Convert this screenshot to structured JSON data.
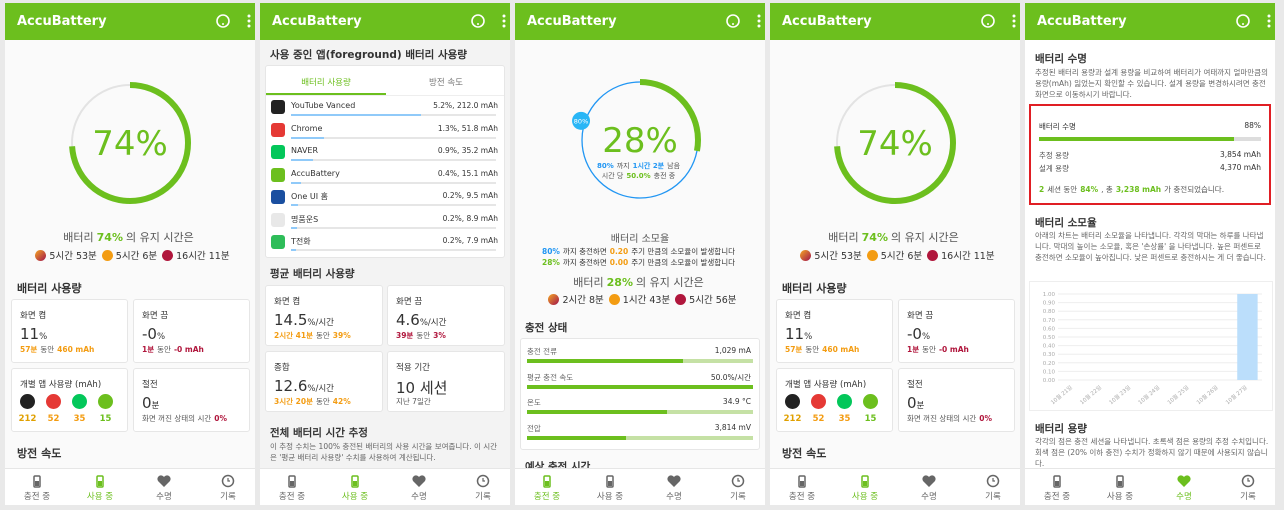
{
  "app_title": "AccuBattery",
  "nav": [
    "충전 중",
    "사용 중",
    "수명",
    "기록"
  ],
  "screens": [
    {
      "nav_active": 1,
      "gauge": {
        "value": 74,
        "label": "74%"
      },
      "retention": [
        "배터리",
        "74%",
        "의 유지 시간은"
      ],
      "times": [
        "5시간 53분",
        "5시간 6분",
        "16시간 11분"
      ],
      "usage_title": "배터리 사용량",
      "screen_on": {
        "label": "화면 켬",
        "value": "11",
        "unit": "%",
        "detail": [
          "57분",
          "동안",
          "460 mAh"
        ]
      },
      "screen_off": {
        "label": "화면 끔",
        "value": "-0",
        "unit": "%",
        "detail": [
          "1분",
          "동안",
          "-0 mAh"
        ]
      },
      "apps": {
        "label": "개별 앱 사용량 (mAh)",
        "values": [
          "212",
          "52",
          "35",
          "15"
        ]
      },
      "doze": {
        "label": "절전",
        "value": "0",
        "unit": "분",
        "detail": [
          "화면 꺼진 상태의 시간",
          "0%"
        ]
      },
      "next_title": "방전 속도"
    },
    {
      "nav_active": 1,
      "title": "사용 중인 앱(foreground) 배터리 사용량",
      "tabs": [
        "배터리 사용량",
        "방전 속도"
      ],
      "apps": [
        {
          "name": "YouTube Vanced",
          "usage": "5.2%, 212.0 mAh"
        },
        {
          "name": "Chrome",
          "usage": "1.3%, 51.8 mAh"
        },
        {
          "name": "NAVER",
          "usage": "0.9%, 35.2 mAh"
        },
        {
          "name": "AccuBattery",
          "usage": "0.4%, 15.1 mAh"
        },
        {
          "name": "One UI 홈",
          "usage": "0.2%, 9.5 mAh"
        },
        {
          "name": "명품운S",
          "usage": "0.2%, 8.9 mAh"
        },
        {
          "name": "T전화",
          "usage": "0.2%, 7.9 mAh"
        }
      ],
      "avg_title": "평균 배터리 사용량",
      "cards": [
        {
          "label": "화면 켬",
          "value": "14.5",
          "unit": "%/시간",
          "detail": [
            "2시간 41분",
            "동안",
            "39%"
          ]
        },
        {
          "label": "화면 끔",
          "value": "4.6",
          "unit": "%/시간",
          "detail": [
            "39분",
            "동안",
            "3%"
          ]
        },
        {
          "label": "종합",
          "value": "12.6",
          "unit": "%/시간",
          "detail": [
            "3시간 20분",
            "동안",
            "42%"
          ]
        },
        {
          "label": "적용 기간",
          "value": "10 세션",
          "detail": [
            "지난 7일간"
          ]
        }
      ],
      "estimate_title": "전체 배터리 시간 추정",
      "estimate_text": "이 추정 수치는 100% 충전된 배터리의 사용 시간을 보여줍니다. 이 시간은 '평균 배터리 사용량' 수치를 사용하여 계산됩니다."
    },
    {
      "nav_active": 0,
      "gauge": {
        "value": 28,
        "label": "28%"
      },
      "target": {
        "value": 80,
        "label": "80%"
      },
      "gauge_lines": [
        [
          "80%",
          "까지",
          "1시간 2분",
          "남음"
        ],
        [
          "시간 당",
          "50.0%",
          "충전 중"
        ]
      ],
      "wear_title": "배터리 소모율",
      "wear_lines": [
        [
          "80%",
          "까지 충전하면",
          "0.20",
          "주기 만큼의 소모율이 발생합니다"
        ],
        [
          "28%",
          "까지 충전하면",
          "0.00",
          "주기 만큼의 소모율이 발생합니다"
        ]
      ],
      "retention": [
        "배터리",
        "28%",
        "의 유지 시간은"
      ],
      "times": [
        "2시간 8분",
        "1시간 43분",
        "5시간 56분"
      ],
      "charge_title": "충전 상태",
      "rows": [
        {
          "label": "충전 전류",
          "value": "1,029 mA"
        },
        {
          "label": "평균 충전 속도",
          "value": "50.0%/시간"
        },
        {
          "label": "온도",
          "value": "34.9 °C"
        },
        {
          "label": "전압",
          "value": "3,814 mV"
        }
      ],
      "next_title": "예상 충전 시간"
    },
    {
      "nav_active": 1,
      "gauge": {
        "value": 74,
        "label": "74%"
      },
      "retention": [
        "배터리",
        "74%",
        "의 유지 시간은"
      ],
      "times": [
        "5시간 53분",
        "5시간 6분",
        "16시간 11분"
      ],
      "usage_title": "배터리 사용량",
      "screen_on": {
        "label": "화면 켬",
        "value": "11",
        "unit": "%",
        "detail": [
          "57분",
          "동안",
          "460 mAh"
        ]
      },
      "screen_off": {
        "label": "화면 끔",
        "value": "-0",
        "unit": "%",
        "detail": [
          "1분",
          "동안",
          "-0 mAh"
        ]
      },
      "apps": {
        "label": "개별 앱 사용량 (mAh)",
        "values": [
          "212",
          "52",
          "35",
          "15"
        ]
      },
      "doze": {
        "label": "절전",
        "value": "0",
        "unit": "분",
        "detail": [
          "화면 꺼진 상태의 시간",
          "0%"
        ]
      },
      "next_title": "방전 속도"
    },
    {
      "nav_active": 2,
      "health_title": "배터리 수명",
      "health_text": "추정된 배터리 용량과 설계 용량을 비교하여 배터리가 여태까지 얼마만큼의 용량(mAh) 잃었는지 확인할 수 있습니다. 설계 용량을 변경하시려면 충전 화면으로 이동하시기 바랍니다.",
      "health": {
        "label": "배터리 수명",
        "value": 88,
        "value_label": "88%"
      },
      "estimated": {
        "label": "추정 용량",
        "value": "3,854 mAh"
      },
      "design": {
        "label": "설계 용량",
        "value": "4,370 mAh"
      },
      "summary": [
        "2",
        "세션 동안",
        "84%",
        ", 총",
        "3,238 mAh",
        "가 충전되었습니다."
      ],
      "wear_title": "배터리 소모율",
      "wear_text": "아래의 차트는 배터리 소모율을 나타냅니다. 각각의 막대는 하루를 나타냅니다. 막대의 높이는 소모율, 혹은 '손상률' 을 나타냅니다. 높은 퍼센트로 충전하면 소모율이 높아집니다. 낮은 퍼센트로 충전하시는 게 더 좋습니다.",
      "chart_data": {
        "type": "bar",
        "categories": [
          "10월 21일",
          "10월 22일",
          "10월 23일",
          "10월 24일",
          "10월 25일",
          "10월 26일",
          "10월 27일"
        ],
        "values": [
          0,
          0,
          0,
          0,
          0,
          0,
          1.0
        ],
        "color": "#bbdefb",
        "ylim": [
          0,
          1
        ],
        "yticks": [
          {
            "value": 0,
            "label": "0.00"
          },
          {
            "value": 0.1,
            "label": "0.10"
          },
          {
            "value": 0.2,
            "label": "0.20"
          },
          {
            "value": 0.3,
            "label": "0.30"
          },
          {
            "value": 0.4,
            "label": "0.40"
          },
          {
            "value": 0.5,
            "label": "0.50"
          },
          {
            "value": 0.6,
            "label": "0.60"
          },
          {
            "value": 0.7,
            "label": "0.70"
          },
          {
            "value": 0.8,
            "label": "0.80"
          },
          {
            "value": 0.9,
            "label": "0.90"
          },
          {
            "value": 1,
            "label": "1.00"
          }
        ],
        "grid": true
      },
      "capacity_title": "배터리 용량",
      "capacity_text": "각각의 점은 충전 세션을 나타냅니다. 초록색 점은 용량의 추정 수치입니다. 회색 점은 (20% 이하 충전) 수치가 정확하지 않기 때문에 사용되지 않습니다."
    }
  ]
}
